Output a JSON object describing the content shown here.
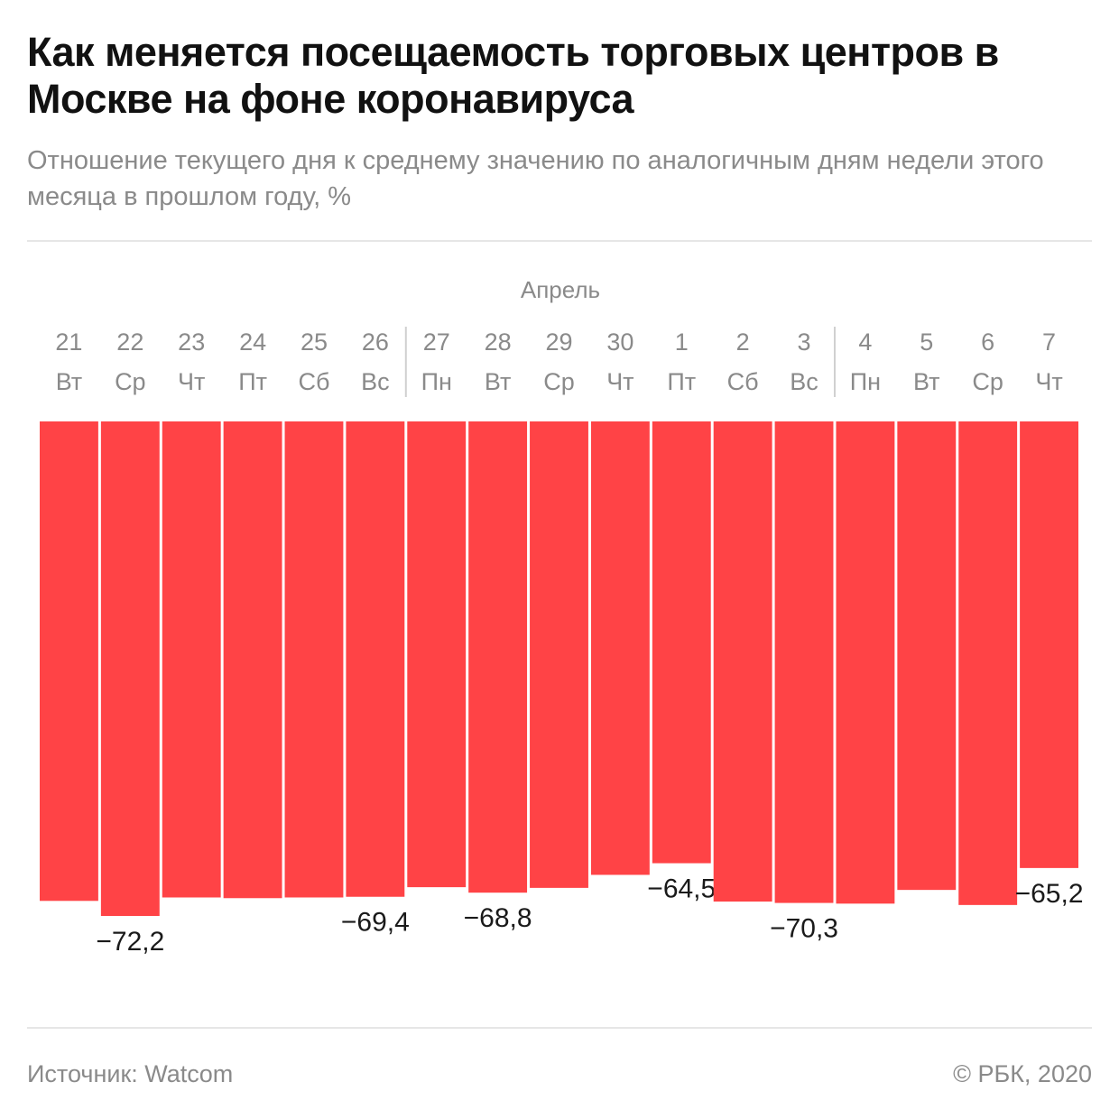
{
  "header": {
    "title": "Как меняется посещаемость торговых центров в Москве на фоне коронавируса",
    "subtitle": "Отношение текущего дня к среднему значению по аналогичным дням недели этого месяца в прошлом году, %"
  },
  "footer": {
    "source": "Источник: Watcom",
    "copyright": "© РБК, 2020"
  },
  "colors": {
    "bar": "#ff4346",
    "axis_text": "#8a8a8a",
    "label_text": "#1a1a1a",
    "separator": "#d0d0d0"
  },
  "chart_data": {
    "type": "bar",
    "orientation": "vertical",
    "baseline": 0,
    "ylim": [
      -72.2,
      0
    ],
    "grid": false,
    "legend": "none",
    "month_label": "Апрель",
    "categories": [
      "21",
      "22",
      "23",
      "24",
      "25",
      "26",
      "27",
      "28",
      "29",
      "30",
      "1",
      "2",
      "3",
      "4",
      "5",
      "6",
      "7"
    ],
    "weekdays": [
      "Вт",
      "Ср",
      "Чт",
      "Пт",
      "Сб",
      "Вс",
      "Пн",
      "Вт",
      "Ср",
      "Чт",
      "Пт",
      "Сб",
      "Вс",
      "Пн",
      "Вт",
      "Ср",
      "Чт"
    ],
    "values": [
      -70.0,
      -72.2,
      -69.5,
      -69.6,
      -69.5,
      -69.4,
      -68.0,
      -68.8,
      -68.1,
      -66.2,
      -64.5,
      -70.1,
      -70.3,
      -70.4,
      -68.4,
      -70.6,
      -65.2
    ],
    "labels": [
      "",
      "−72,2",
      "",
      "",
      "",
      "−69,4",
      "",
      "−68,8",
      "",
      "",
      "−64,5",
      "",
      "−70,3",
      "",
      "",
      "",
      "−65,2"
    ],
    "week_separators_after": [
      5,
      12
    ]
  }
}
